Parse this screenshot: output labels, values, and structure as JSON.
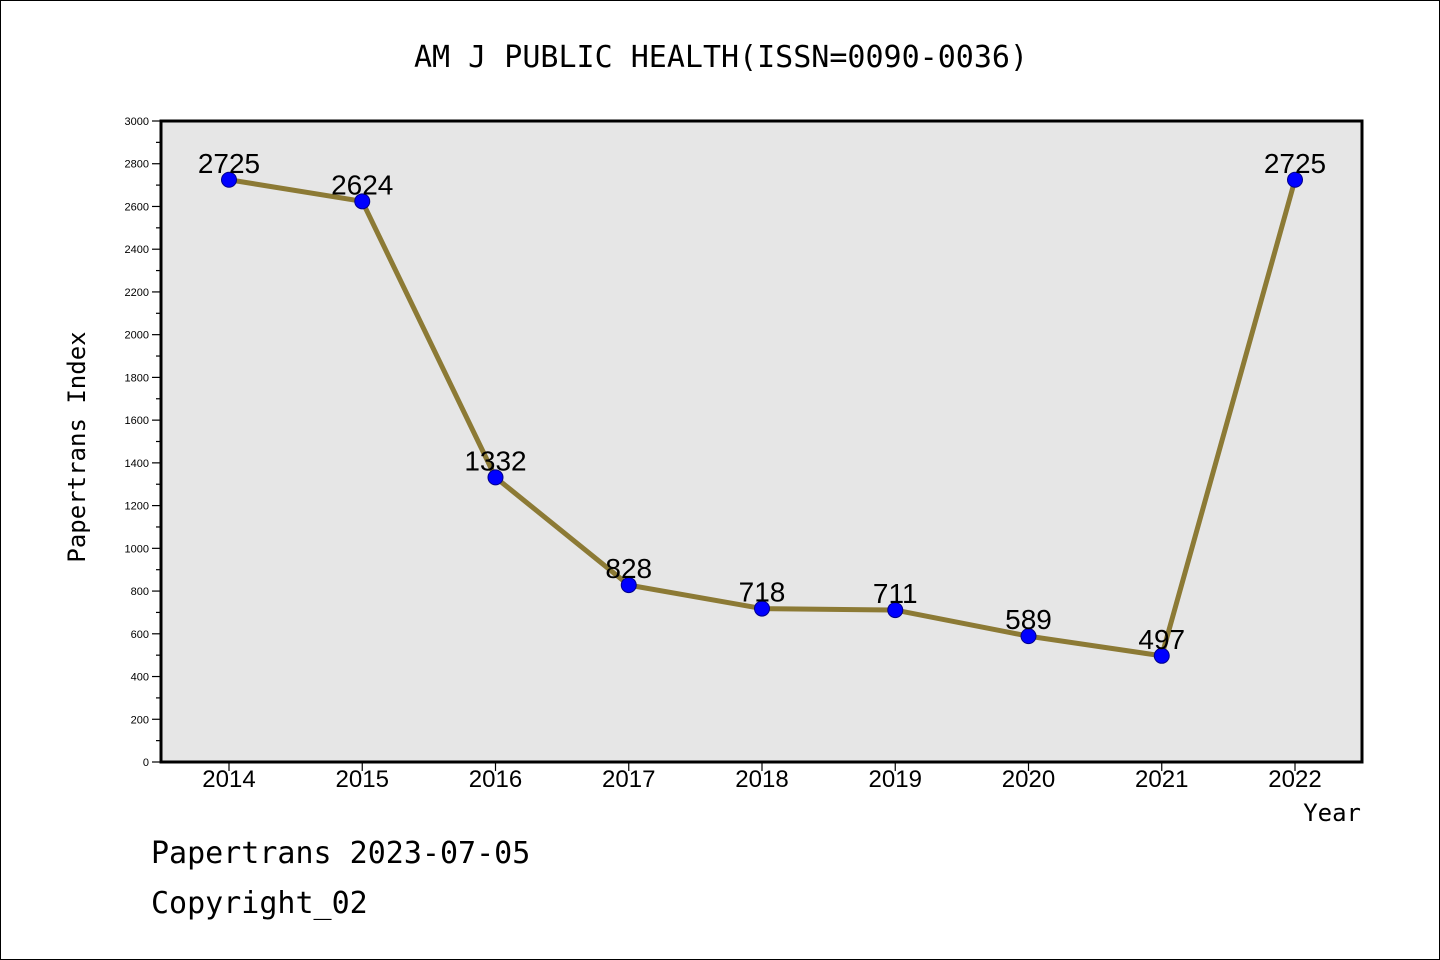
{
  "chart_data": {
    "type": "line",
    "title": "AM J PUBLIC HEALTH(ISSN=0090-0036)",
    "xlabel": "Year",
    "ylabel": "Papertrans Index",
    "x": [
      "2014",
      "2015",
      "2016",
      "2017",
      "2018",
      "2019",
      "2020",
      "2021",
      "2022"
    ],
    "values": [
      2725,
      2624,
      1332,
      828,
      718,
      711,
      589,
      497,
      2725
    ],
    "data_labels": [
      "2725",
      "2624",
      "1332",
      "828",
      "718",
      "711",
      "589",
      "497",
      "2725"
    ],
    "ylim": [
      0,
      3000
    ],
    "yticks": [
      0,
      200,
      400,
      600,
      800,
      1000,
      1200,
      1400,
      1600,
      1800,
      2000,
      2200,
      2400,
      2600,
      2800,
      3000
    ],
    "grid": false,
    "legend": "none",
    "colors": {
      "line": "#8c7a35",
      "marker": "#0000ff",
      "plot_background": "#e6e6e6",
      "frame": "#000000"
    }
  },
  "footer": {
    "line1": "Papertrans 2023-07-05",
    "line2": "Copyright_02"
  }
}
